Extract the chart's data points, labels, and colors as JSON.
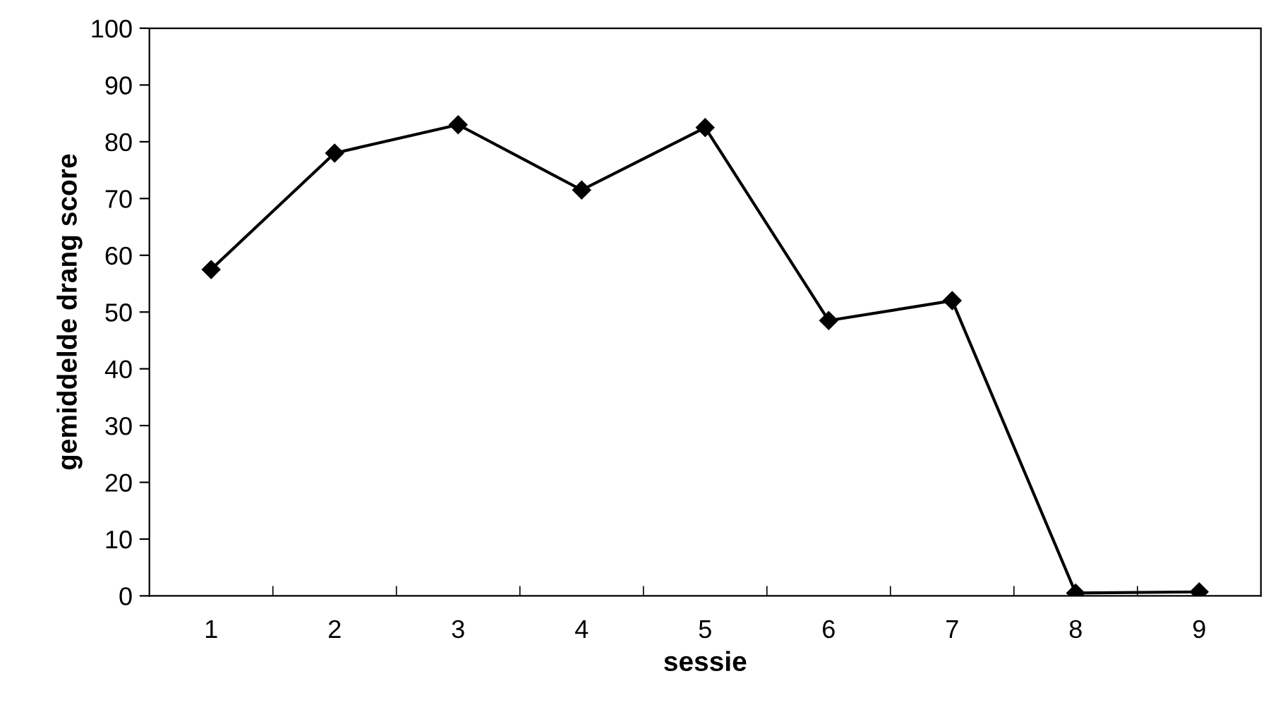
{
  "chart_data": {
    "type": "line",
    "xlabel": "sessie",
    "ylabel": "gemiddelde drang score",
    "categories": [
      "1",
      "2",
      "3",
      "4",
      "5",
      "6",
      "7",
      "8",
      "9"
    ],
    "series": [
      {
        "color": "#000000",
        "values": [
          57.5,
          78,
          83,
          71.5,
          82.5,
          48.5,
          52,
          0.5,
          0.7
        ]
      }
    ],
    "ylim": [
      0,
      100
    ],
    "yticks": [
      0,
      10,
      20,
      30,
      40,
      50,
      60,
      70,
      80,
      90,
      100
    ],
    "marker": "diamond",
    "line_style": "solid",
    "grid": false,
    "legend": false
  }
}
